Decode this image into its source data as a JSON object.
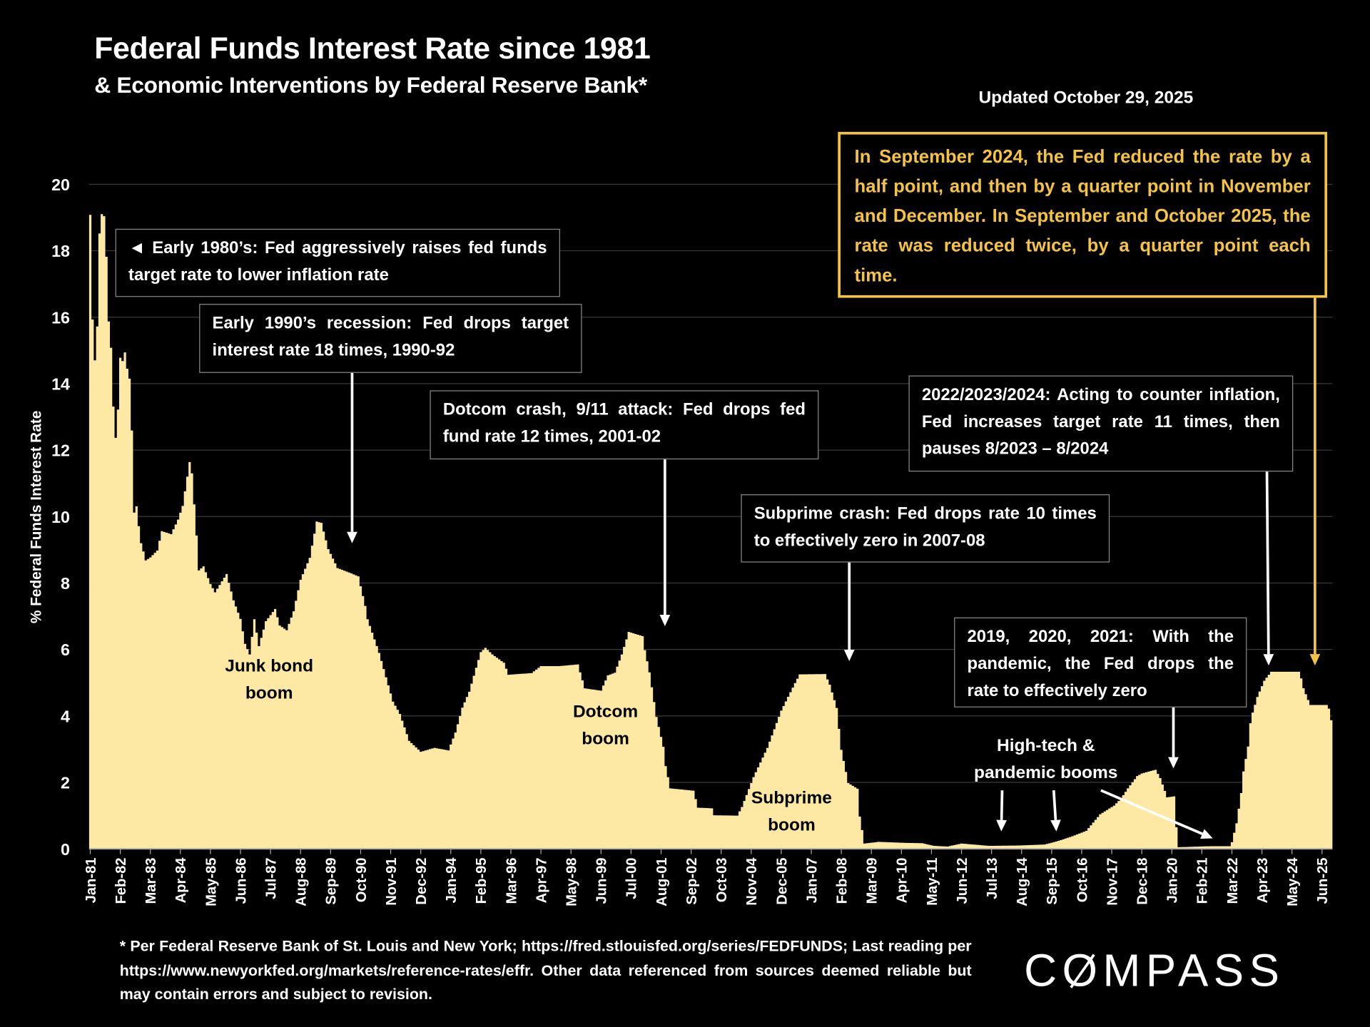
{
  "header": {
    "title": "Federal Funds Interest Rate since 1981",
    "subtitle": "& Economic Interventions by Federal Reserve Bank*",
    "updated": "Updated October 29, 2025"
  },
  "annotations": {
    "early_1980s": "◄ Early 1980’s: Fed aggressively raises fed funds target rate to lower inflation rate",
    "early_1990s": "Early 1990’s recession: Fed drops target interest rate 18 times, 1990-92",
    "dotcom_crash": "Dotcom crash, 9/11 attack: Fed drops fed fund rate 12 times, 2001-02",
    "subprime_crash": "Subprime crash: Fed drops rate 10 times to effectively zero in 2007-08",
    "inflation_2022": "2022/2023/2024: Acting to counter inflation, Fed increases target rate 11 times, then pauses 8/2023 – 8/2024",
    "pandemic": "2019, 2020, 2021: With the pandemic, the Fed drops the rate to effectively zero",
    "recent_cuts": "In September 2024, the Fed reduced the rate by a half point, and then by a quarter point in November and December. In September and October 2025, the rate was reduced twice, by a quarter point each time.",
    "junk_bond_1": "Junk bond",
    "junk_bond_2": "boom",
    "dotcom_boom_1": "Dotcom",
    "dotcom_boom_2": "boom",
    "subprime_boom_1": "Subprime",
    "subprime_boom_2": "boom",
    "hightech_1": "High-tech &",
    "hightech_2": "pandemic booms"
  },
  "footer": {
    "note": "* Per Federal Reserve Bank of St. Louis and New York; https://fred.stlouisfed.org/series/FEDFUNDS; Last reading per https://www.newyorkfed.org/markets/reference-rates/effr. Other data referenced from sources deemed reliable but may contain errors and subject to revision.",
    "logo": "COMPASS"
  },
  "colors": {
    "fill": "#fde9a4",
    "background": "#000000",
    "callout": "#f5c342",
    "grid": "#3a3a3a"
  },
  "chart_data": {
    "type": "area",
    "title": "Federal Funds Interest Rate since 1981",
    "ylabel": "% Federal Funds Interest Rate",
    "xlabel": "",
    "ylim": [
      0,
      20
    ],
    "yticks": [
      0,
      2,
      4,
      6,
      8,
      10,
      12,
      14,
      16,
      18,
      20
    ],
    "grid": "horizontal",
    "xrange": [
      "1981-01",
      "2025-10"
    ],
    "xtick_labels": [
      "Jan-81",
      "Feb-82",
      "Mar-83",
      "Apr-84",
      "May-85",
      "Jun-86",
      "Jul-87",
      "Aug-88",
      "Sep-89",
      "Oct-90",
      "Nov-91",
      "Dec-92",
      "Jan-94",
      "Feb-95",
      "Mar-96",
      "Apr-97",
      "May-98",
      "Jun-99",
      "Jul-00",
      "Aug-01",
      "Sep-02",
      "Oct-03",
      "Nov-04",
      "Dec-05",
      "Jan-07",
      "Feb-08",
      "Mar-09",
      "Apr-10",
      "May-11",
      "Jun-12",
      "Jul-13",
      "Aug-14",
      "Sep-15",
      "Oct-16",
      "Nov-17",
      "Dec-18",
      "Jan-20",
      "Feb-21",
      "Mar-22",
      "Apr-23",
      "May-24",
      "Jun-25"
    ],
    "series": [
      {
        "points": [
          [
            "1981-01",
            19.08
          ],
          [
            "1981-02",
            15.93
          ],
          [
            "1981-03",
            14.7
          ],
          [
            "1981-04",
            15.72
          ],
          [
            "1981-05",
            18.52
          ],
          [
            "1981-06",
            19.1
          ],
          [
            "1981-07",
            19.04
          ],
          [
            "1981-08",
            17.82
          ],
          [
            "1981-09",
            15.87
          ],
          [
            "1981-10",
            15.08
          ],
          [
            "1981-11",
            13.31
          ],
          [
            "1981-12",
            12.37
          ],
          [
            "1982-01",
            13.22
          ],
          [
            "1982-02",
            14.78
          ],
          [
            "1982-03",
            14.68
          ],
          [
            "1982-04",
            14.94
          ],
          [
            "1982-05",
            14.45
          ],
          [
            "1982-06",
            14.15
          ],
          [
            "1982-07",
            12.59
          ],
          [
            "1982-08",
            10.12
          ],
          [
            "1982-09",
            10.31
          ],
          [
            "1982-10",
            9.71
          ],
          [
            "1982-11",
            9.2
          ],
          [
            "1982-12",
            8.95
          ],
          [
            "1983-01",
            8.68
          ],
          [
            "1983-03",
            8.77
          ],
          [
            "1983-06",
            8.98
          ],
          [
            "1983-08",
            9.56
          ],
          [
            "1983-12",
            9.47
          ],
          [
            "1984-03",
            9.91
          ],
          [
            "1984-05",
            10.32
          ],
          [
            "1984-08",
            11.64
          ],
          [
            "1984-09",
            11.3
          ],
          [
            "1984-11",
            9.43
          ],
          [
            "1984-12",
            8.38
          ],
          [
            "1985-02",
            8.5
          ],
          [
            "1985-05",
            7.97
          ],
          [
            "1985-07",
            7.72
          ],
          [
            "1985-12",
            8.27
          ],
          [
            "1986-03",
            7.48
          ],
          [
            "1986-06",
            6.92
          ],
          [
            "1986-08",
            6.17
          ],
          [
            "1986-10",
            5.85
          ],
          [
            "1986-12",
            6.91
          ],
          [
            "1987-02",
            6.1
          ],
          [
            "1987-05",
            6.85
          ],
          [
            "1987-09",
            7.22
          ],
          [
            "1987-11",
            6.72
          ],
          [
            "1988-02",
            6.58
          ],
          [
            "1988-05",
            7.15
          ],
          [
            "1988-08",
            8.1
          ],
          [
            "1988-12",
            8.76
          ],
          [
            "1989-03",
            9.85
          ],
          [
            "1989-05",
            9.81
          ],
          [
            "1989-08",
            9.02
          ],
          [
            "1989-12",
            8.45
          ],
          [
            "1990-06",
            8.29
          ],
          [
            "1990-09",
            8.2
          ],
          [
            "1990-12",
            7.31
          ],
          [
            "1991-01",
            6.91
          ],
          [
            "1991-06",
            5.9
          ],
          [
            "1991-12",
            4.43
          ],
          [
            "1992-03",
            4.06
          ],
          [
            "1992-07",
            3.25
          ],
          [
            "1992-12",
            2.92
          ],
          [
            "1993-06",
            3.04
          ],
          [
            "1993-12",
            2.96
          ],
          [
            "1994-03",
            3.5
          ],
          [
            "1994-06",
            4.25
          ],
          [
            "1994-09",
            4.73
          ],
          [
            "1994-12",
            5.45
          ],
          [
            "1995-02",
            5.92
          ],
          [
            "1995-04",
            6.05
          ],
          [
            "1995-07",
            5.85
          ],
          [
            "1995-12",
            5.6
          ],
          [
            "1996-02",
            5.24
          ],
          [
            "1996-12",
            5.29
          ],
          [
            "1997-04",
            5.5
          ],
          [
            "1997-12",
            5.5
          ],
          [
            "1998-08",
            5.55
          ],
          [
            "1998-11",
            4.83
          ],
          [
            "1999-06",
            4.76
          ],
          [
            "1999-09",
            5.22
          ],
          [
            "1999-12",
            5.3
          ],
          [
            "2000-03",
            5.85
          ],
          [
            "2000-06",
            6.53
          ],
          [
            "2000-12",
            6.4
          ],
          [
            "2001-01",
            5.98
          ],
          [
            "2001-03",
            5.31
          ],
          [
            "2001-06",
            3.97
          ],
          [
            "2001-09",
            3.07
          ],
          [
            "2001-10",
            2.49
          ],
          [
            "2001-12",
            1.82
          ],
          [
            "2002-10",
            1.75
          ],
          [
            "2002-12",
            1.24
          ],
          [
            "2003-06",
            1.22
          ],
          [
            "2003-07",
            1.01
          ],
          [
            "2004-05",
            1.0
          ],
          [
            "2004-07",
            1.26
          ],
          [
            "2004-12",
            2.16
          ],
          [
            "2005-06",
            3.04
          ],
          [
            "2005-12",
            4.16
          ],
          [
            "2006-06",
            4.99
          ],
          [
            "2006-08",
            5.25
          ],
          [
            "2007-07",
            5.26
          ],
          [
            "2007-09",
            4.94
          ],
          [
            "2007-12",
            4.24
          ],
          [
            "2008-02",
            2.98
          ],
          [
            "2008-05",
            1.98
          ],
          [
            "2008-09",
            1.81
          ],
          [
            "2008-10",
            0.97
          ],
          [
            "2008-12",
            0.16
          ],
          [
            "2009-06",
            0.21
          ],
          [
            "2010-06",
            0.18
          ],
          [
            "2011-01",
            0.17
          ],
          [
            "2011-06",
            0.09
          ],
          [
            "2011-12",
            0.07
          ],
          [
            "2012-06",
            0.16
          ],
          [
            "2013-06",
            0.09
          ],
          [
            "2014-06",
            0.1
          ],
          [
            "2015-06",
            0.13
          ],
          [
            "2015-12",
            0.24
          ],
          [
            "2016-06",
            0.38
          ],
          [
            "2016-12",
            0.54
          ],
          [
            "2017-03",
            0.79
          ],
          [
            "2017-06",
            1.04
          ],
          [
            "2017-12",
            1.3
          ],
          [
            "2018-03",
            1.51
          ],
          [
            "2018-06",
            1.82
          ],
          [
            "2018-10",
            2.19
          ],
          [
            "2018-12",
            2.27
          ],
          [
            "2019-06",
            2.38
          ],
          [
            "2019-08",
            2.13
          ],
          [
            "2019-11",
            1.55
          ],
          [
            "2020-02",
            1.58
          ],
          [
            "2020-03",
            0.65
          ],
          [
            "2020-04",
            0.05
          ],
          [
            "2021-06",
            0.08
          ],
          [
            "2022-02",
            0.08
          ],
          [
            "2022-03",
            0.2
          ],
          [
            "2022-05",
            0.77
          ],
          [
            "2022-06",
            1.21
          ],
          [
            "2022-07",
            1.68
          ],
          [
            "2022-08",
            2.33
          ],
          [
            "2022-10",
            3.08
          ],
          [
            "2022-11",
            3.78
          ],
          [
            "2022-12",
            4.1
          ],
          [
            "2023-02",
            4.57
          ],
          [
            "2023-05",
            5.06
          ],
          [
            "2023-08",
            5.33
          ],
          [
            "2024-08",
            5.33
          ],
          [
            "2024-09",
            5.13
          ],
          [
            "2024-10",
            4.83
          ],
          [
            "2024-12",
            4.48
          ],
          [
            "2025-01",
            4.33
          ],
          [
            "2025-08",
            4.33
          ],
          [
            "2025-09",
            4.22
          ],
          [
            "2025-10",
            3.87
          ]
        ]
      }
    ]
  }
}
